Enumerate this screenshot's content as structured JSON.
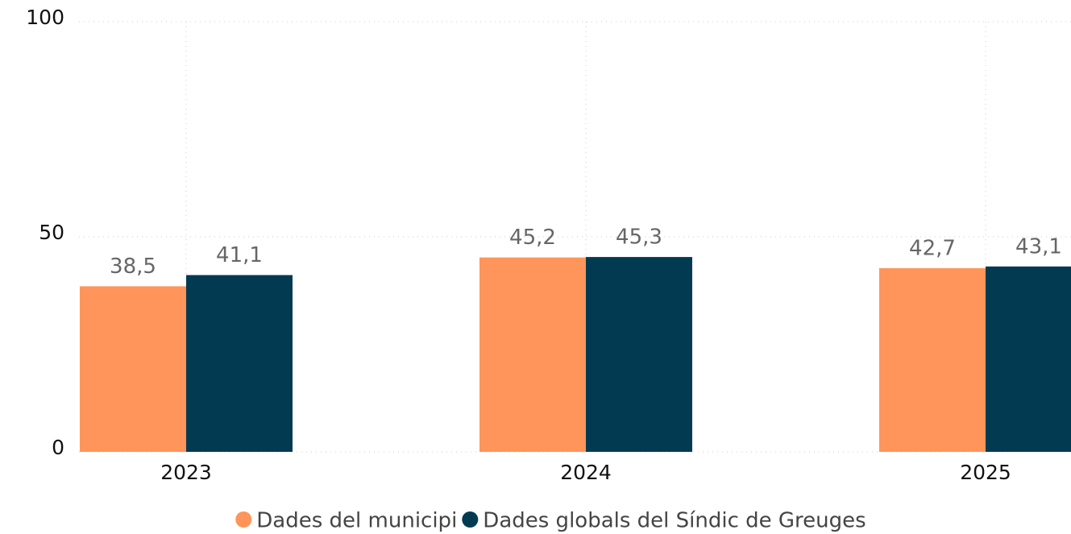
{
  "chart_data": {
    "type": "bar",
    "categories": [
      "2023",
      "2024",
      "2025"
    ],
    "series": [
      {
        "name": "Dades del municipi",
        "color": "#ff955a",
        "values": [
          38.5,
          45.2,
          42.7
        ],
        "value_labels": [
          "38,5",
          "45,2",
          "42,7"
        ]
      },
      {
        "name": "Dades globals del Síndic de Greuges",
        "color": "#023a52",
        "values": [
          41.1,
          45.3,
          43.1
        ],
        "value_labels": [
          "41,1",
          "45,3",
          "43,1"
        ]
      }
    ],
    "ylim": [
      0,
      100
    ],
    "yticks": [
      0,
      50,
      100
    ],
    "grid": true
  }
}
